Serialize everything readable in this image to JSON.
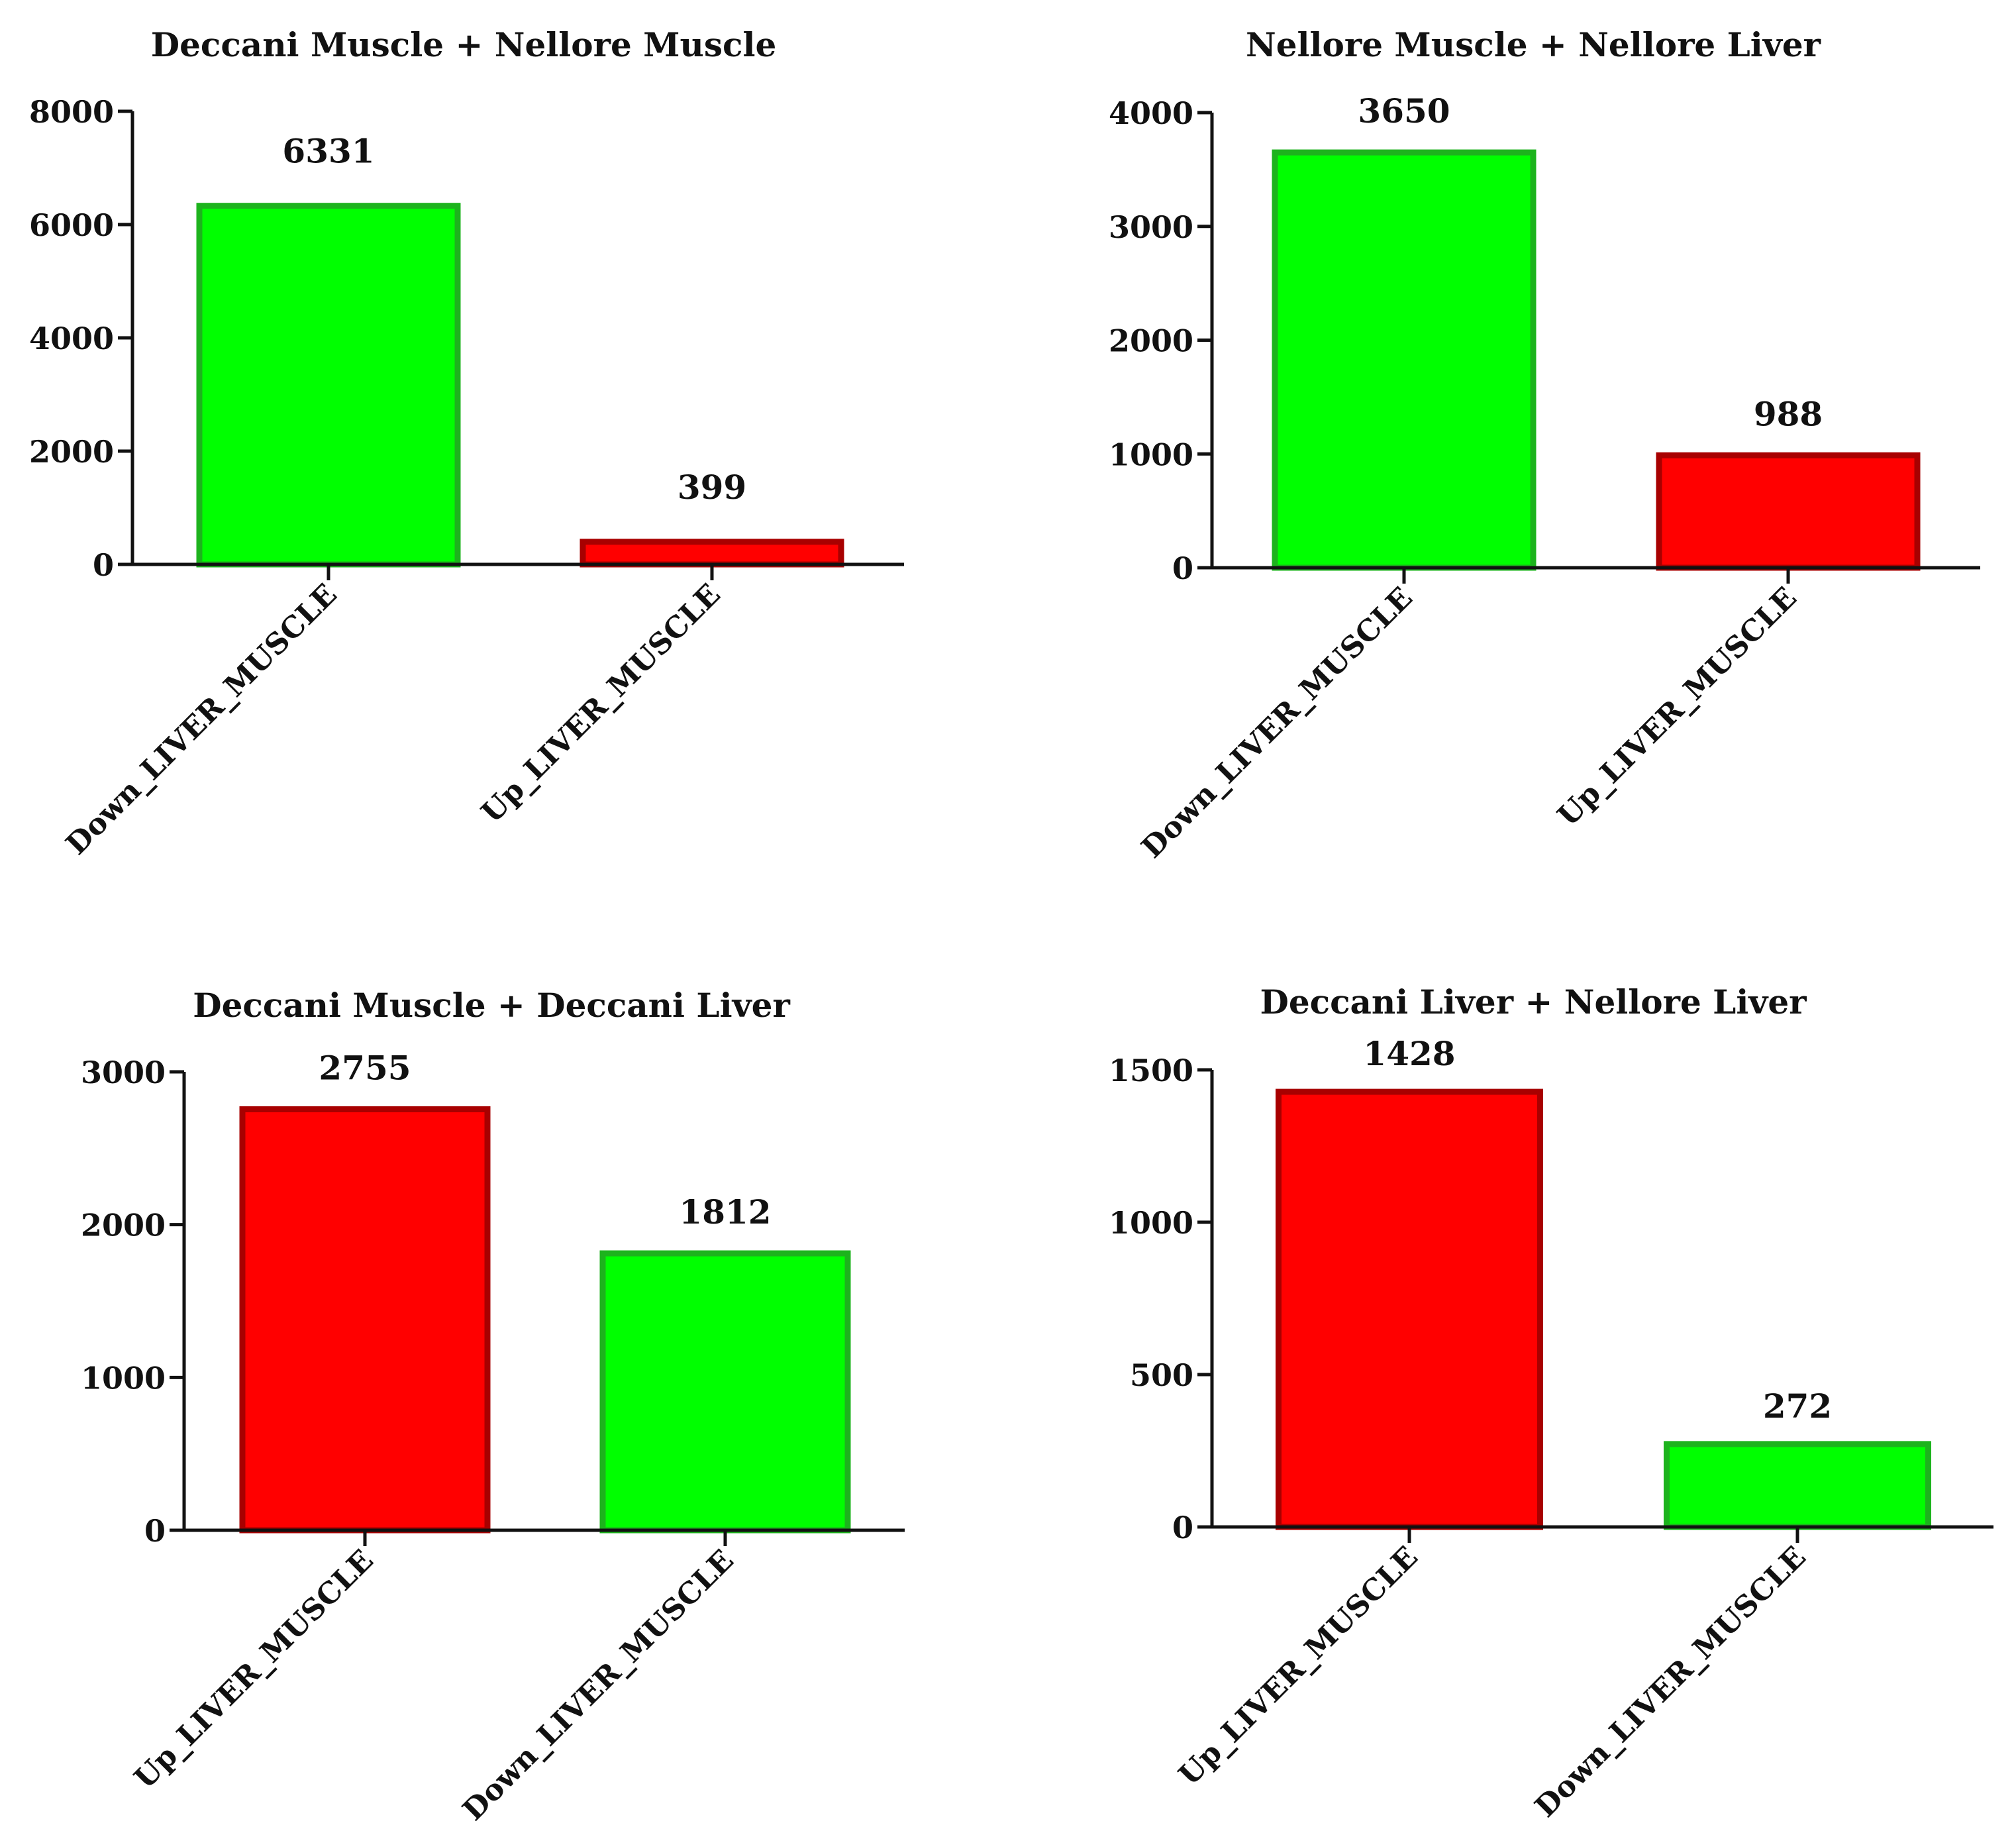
{
  "chart_data": [
    {
      "type": "bar",
      "title": "Deccani Muscle + Nellore Muscle",
      "categories": [
        "Down_LIVER_MUSCLE",
        "Up_LIVER_MUSCLE"
      ],
      "values": [
        6331,
        399
      ],
      "data_labels": [
        "6331",
        "399"
      ],
      "bar_colors": [
        "#00ff00",
        "#ff0000"
      ],
      "xlabel": "",
      "ylabel": "",
      "ylim": [
        0,
        8000
      ],
      "yticks": [
        0,
        2000,
        4000,
        6000,
        8000
      ],
      "grid": false,
      "legend": "none"
    },
    {
      "type": "bar",
      "title": "Nellore Muscle + Nellore Liver",
      "categories": [
        "Down_LIVER_MUSCLE",
        "Up_LIVER_MUSCLE"
      ],
      "values": [
        3650,
        988
      ],
      "data_labels": [
        "3650",
        "988"
      ],
      "bar_colors": [
        "#00ff00",
        "#ff0000"
      ],
      "xlabel": "",
      "ylabel": "",
      "ylim": [
        0,
        4000
      ],
      "yticks": [
        0,
        1000,
        2000,
        3000,
        4000
      ],
      "grid": false,
      "legend": "none"
    },
    {
      "type": "bar",
      "title": "Deccani Muscle + Deccani  Liver",
      "categories": [
        "Up_LIVER_MUSCLE",
        "Down_LIVER_MUSCLE"
      ],
      "values": [
        2755,
        1812
      ],
      "data_labels": [
        "2755",
        "1812"
      ],
      "bar_colors": [
        "#ff0000",
        "#00ff00"
      ],
      "xlabel": "",
      "ylabel": "",
      "ylim": [
        0,
        3000
      ],
      "yticks": [
        0,
        1000,
        2000,
        3000
      ],
      "grid": false,
      "legend": "none"
    },
    {
      "type": "bar",
      "title": "Deccani Liver + Nellore Liver",
      "categories": [
        "Up_LIVER_MUSCLE",
        "Down_LIVER_MUSCLE"
      ],
      "values": [
        1428,
        272
      ],
      "data_labels": [
        "1428",
        "272"
      ],
      "bar_colors": [
        "#ff0000",
        "#00ff00"
      ],
      "xlabel": "",
      "ylabel": "",
      "ylim": [
        0,
        1500
      ],
      "yticks": [
        0,
        500,
        1000,
        1500
      ],
      "grid": false,
      "legend": "none"
    }
  ],
  "colors": {
    "green_fill": "#00ff00",
    "green_stroke": "#1db31d",
    "red_fill": "#ff0000",
    "red_stroke": "#a80000",
    "axis": "#111111"
  }
}
